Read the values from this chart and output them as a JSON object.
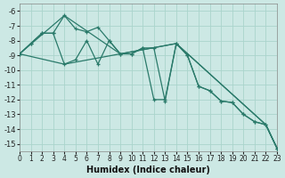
{
  "xlabel": "Humidex (Indice chaleur)",
  "bg_color": "#cce8e4",
  "grid_color": "#aad4cc",
  "line_color": "#2a7a6a",
  "xlim": [
    0,
    23
  ],
  "ylim": [
    -15.5,
    -5.5
  ],
  "yticks": [
    -6,
    -7,
    -8,
    -9,
    -10,
    -11,
    -12,
    -13,
    -14,
    -15
  ],
  "xticks": [
    0,
    1,
    2,
    3,
    4,
    5,
    6,
    7,
    8,
    9,
    10,
    11,
    12,
    13,
    14,
    15,
    16,
    17,
    18,
    19,
    20,
    21,
    22,
    23
  ],
  "line1_x": [
    0,
    1,
    2,
    3,
    4,
    5,
    6,
    7,
    8,
    9,
    10,
    11,
    12,
    13,
    14,
    15,
    16,
    17,
    18,
    19,
    20,
    21,
    22,
    23
  ],
  "line1_y": [
    -8.9,
    -8.2,
    -7.5,
    -7.5,
    -6.3,
    -7.2,
    -7.4,
    -7.1,
    -8.0,
    -8.9,
    -8.9,
    -8.5,
    -8.5,
    -12.1,
    -8.2,
    -9.0,
    -11.1,
    -11.4,
    -12.1,
    -12.2,
    -13.0,
    -13.5,
    -13.7,
    -15.3
  ],
  "line2_x": [
    0,
    1,
    2,
    3,
    4,
    5,
    6,
    7,
    8,
    9,
    10,
    11,
    12,
    13,
    14,
    15,
    16,
    17,
    18,
    19,
    20,
    21,
    22,
    23
  ],
  "line2_y": [
    -8.9,
    -8.2,
    -7.5,
    -7.5,
    -9.6,
    -9.3,
    -8.0,
    -9.6,
    -8.0,
    -8.9,
    -8.9,
    -8.5,
    -12.0,
    -12.0,
    -8.2,
    -9.0,
    -11.1,
    -11.4,
    -12.1,
    -12.2,
    -13.0,
    -13.5,
    -13.7,
    -15.3
  ],
  "line3_x": [
    0,
    4,
    9,
    14,
    22,
    23
  ],
  "line3_y": [
    -8.9,
    -6.3,
    -8.9,
    -8.2,
    -13.7,
    -15.3
  ],
  "line4_x": [
    0,
    4,
    9,
    14,
    22,
    23
  ],
  "line4_y": [
    -8.9,
    -9.6,
    -8.9,
    -8.2,
    -13.7,
    -15.3
  ]
}
